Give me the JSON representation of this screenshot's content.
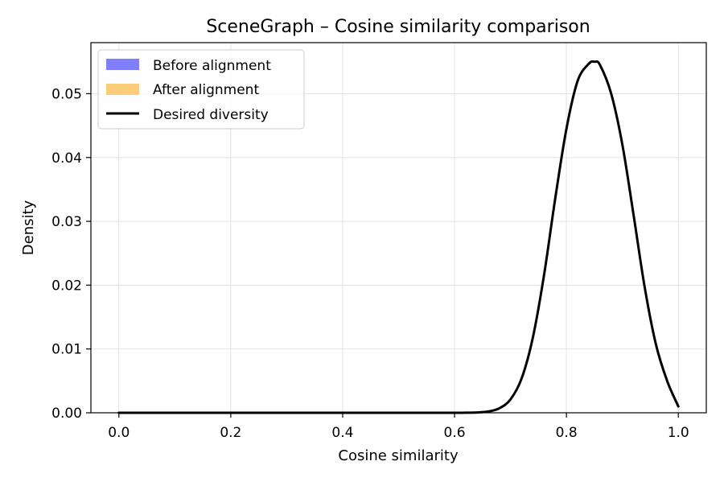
{
  "chart_data": {
    "type": "line",
    "title": "SceneGraph – Cosine similarity comparison",
    "xlabel": "Cosine similarity",
    "ylabel": "Density",
    "xlim": [
      -0.05,
      1.05
    ],
    "ylim": [
      0,
      0.058
    ],
    "x_ticks": [
      0.0,
      0.2,
      0.4,
      0.6,
      0.8,
      1.0
    ],
    "x_tick_labels": [
      "0.0",
      "0.2",
      "0.4",
      "0.6",
      "0.8",
      "1.0"
    ],
    "y_ticks": [
      0.0,
      0.01,
      0.02,
      0.03,
      0.04,
      0.05
    ],
    "y_tick_labels": [
      "0.00",
      "0.01",
      "0.02",
      "0.03",
      "0.04",
      "0.05"
    ],
    "grid": true,
    "legend_position": "top-left",
    "legend": [
      {
        "label": "Before alignment",
        "kind": "patch",
        "color": "#7f7fff"
      },
      {
        "label": "After alignment",
        "kind": "patch",
        "color": "#fbcd7a"
      },
      {
        "label": "Desired diversity",
        "kind": "line",
        "color": "#000000"
      }
    ],
    "series": [
      {
        "name": "Desired diversity",
        "color": "#000000",
        "x": [
          0.0,
          0.05,
          0.1,
          0.15,
          0.2,
          0.25,
          0.3,
          0.35,
          0.4,
          0.45,
          0.5,
          0.55,
          0.6,
          0.62,
          0.64,
          0.66,
          0.68,
          0.7,
          0.72,
          0.74,
          0.76,
          0.78,
          0.8,
          0.82,
          0.84,
          0.85,
          0.86,
          0.88,
          0.9,
          0.92,
          0.94,
          0.96,
          0.98,
          1.0
        ],
        "y": [
          0.0,
          0.0,
          0.0,
          0.0,
          0.0,
          0.0,
          0.0,
          0.0,
          0.0,
          0.0,
          0.0,
          0.0,
          0.0,
          1e-05,
          5e-05,
          0.0002,
          0.0007,
          0.0021,
          0.0054,
          0.0118,
          0.0216,
          0.0336,
          0.0445,
          0.052,
          0.0547,
          0.055,
          0.0545,
          0.05,
          0.042,
          0.031,
          0.0196,
          0.0107,
          0.005,
          0.001
        ]
      }
    ]
  }
}
